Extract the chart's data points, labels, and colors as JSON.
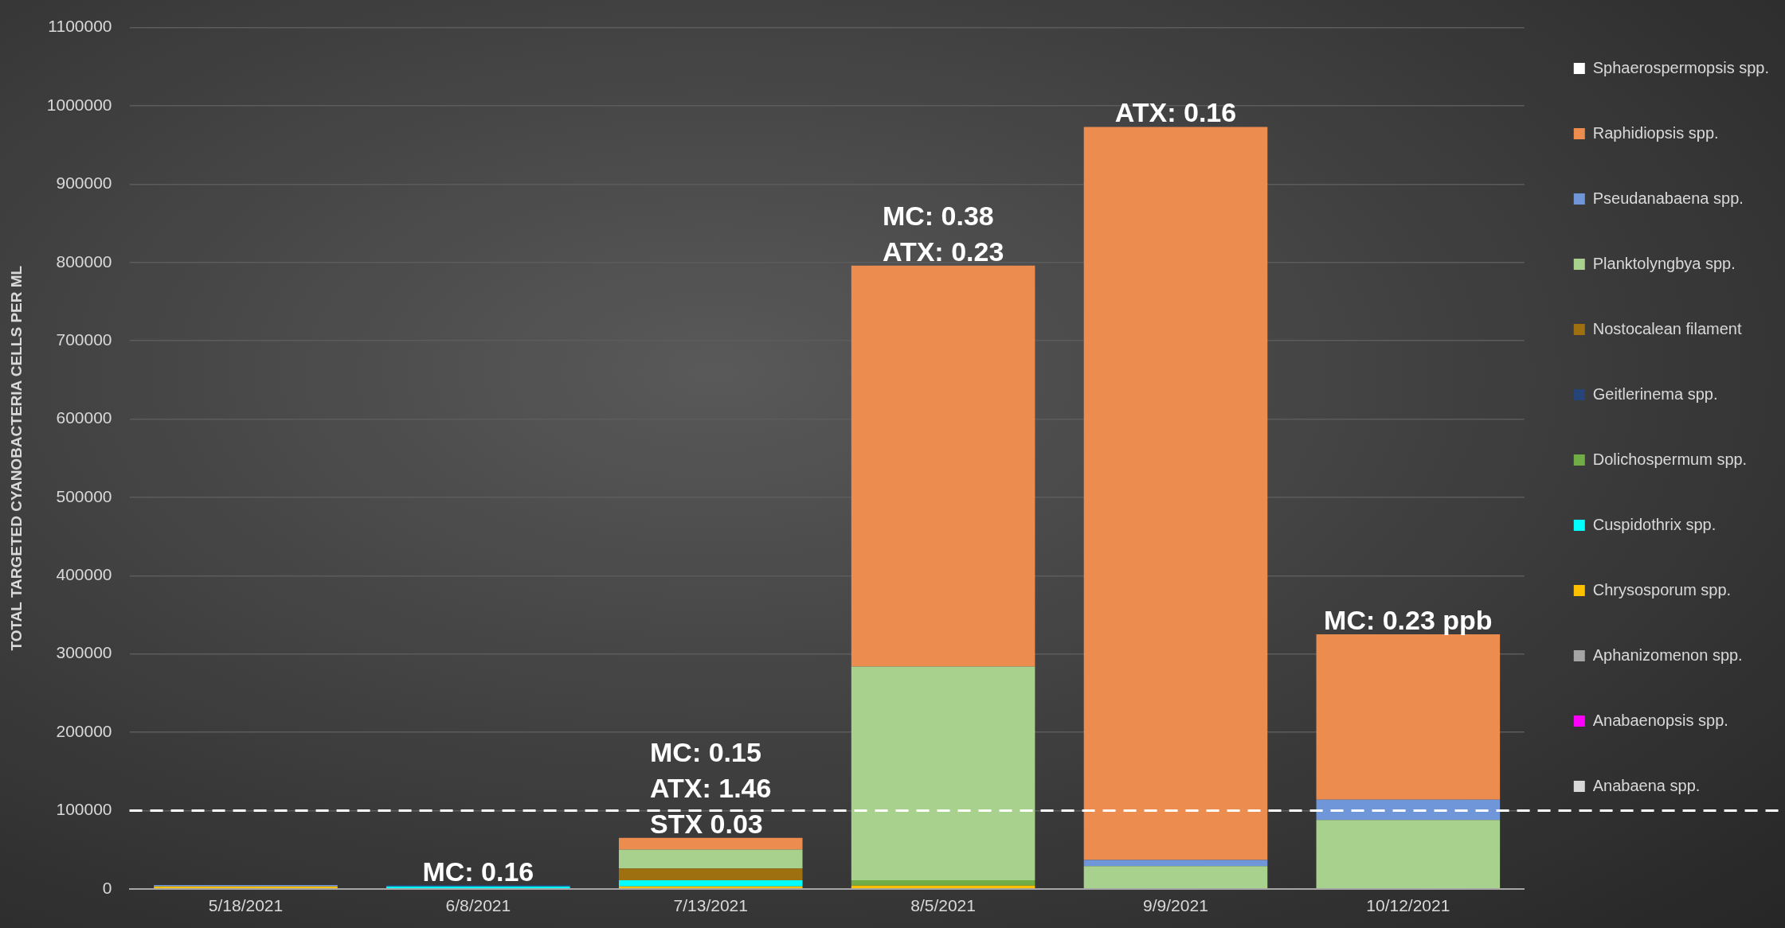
{
  "chart_data": {
    "type": "bar",
    "ylabel": "TOTAL TARGETED CYANOBACTERIA CELLS PER ML",
    "categories": [
      "5/18/2021",
      "6/8/2021",
      "7/13/2021",
      "8/5/2021",
      "9/9/2021",
      "10/12/2021"
    ],
    "stacked": true,
    "series": [
      {
        "name": "Anabaena spp.",
        "color": "#d9d9d9",
        "values": [
          0,
          0,
          0,
          0,
          0,
          0
        ]
      },
      {
        "name": "Anabaenopsis spp.",
        "color": "#ff00ff",
        "values": [
          0,
          0,
          0,
          0,
          0,
          0
        ]
      },
      {
        "name": "Aphanizomenon spp.",
        "color": "#a5a5a5",
        "values": [
          0,
          0,
          0,
          0,
          0,
          0
        ]
      },
      {
        "name": "Chrysosporum spp.",
        "color": "#ffc000",
        "values": [
          3000,
          0,
          3000,
          4000,
          0,
          0
        ]
      },
      {
        "name": "Cuspidothrix spp.",
        "color": "#00ffff",
        "values": [
          0,
          3000,
          8000,
          0,
          null,
          0
        ]
      },
      {
        "name": "Dolichospermum spp.",
        "color": "#70ad47",
        "values": [
          0,
          0,
          0,
          7000,
          0,
          0
        ]
      },
      {
        "name": "Geitlerinema spp.",
        "color": "#264478",
        "values": [
          0,
          2000,
          0,
          0,
          0,
          0
        ]
      },
      {
        "name": "Nostocalean filament",
        "color": "#9e7010",
        "values": [
          0,
          0,
          15000,
          0,
          0,
          0
        ]
      },
      {
        "name": "Planktolyngbya spp.",
        "color": "#a9d18e",
        "values": [
          0,
          0,
          24000,
          273000,
          29000,
          88000
        ]
      },
      {
        "name": "Pseudanabaena spp.",
        "color": "#6f96d8",
        "values": [
          2000,
          0,
          0,
          0,
          8000,
          26000
        ]
      },
      {
        "name": "Raphidiopsis spp.",
        "color": "#ed8c4f",
        "values": [
          0,
          0,
          15000,
          512000,
          936000,
          211000
        ]
      },
      {
        "name": "Sphaerospermopsis spp.",
        "color": "#ffffff",
        "values": [
          0,
          0,
          0,
          0,
          0,
          0
        ]
      }
    ],
    "ylim": [
      0,
      1100000
    ],
    "yticks": [
      0,
      100000,
      200000,
      300000,
      400000,
      500000,
      600000,
      700000,
      800000,
      900000,
      1000000,
      1100000
    ],
    "grid": "y",
    "legend": "right",
    "ref_lines": [
      {
        "axis": "y",
        "value": 100000,
        "color": "#ffffff",
        "line_style": "dashed"
      }
    ],
    "annotations": [
      {
        "text": "MC: 0.16",
        "x": "6/8/2021",
        "y": 4000
      },
      {
        "text": "MC: 0.15\nATX: 1.46\nSTX 0.03",
        "x": "7/13/2021",
        "y": 64500
      },
      {
        "text": "MC: 0.38\nATX: 0.23",
        "x": "8/5/2021",
        "y": 796000
      },
      {
        "text": "ATX: 0.16",
        "x": "9/9/2021",
        "y": 974000
      },
      {
        "text": "MC: 0.23 ppb",
        "x": "10/12/2021",
        "y": 325000
      }
    ]
  }
}
